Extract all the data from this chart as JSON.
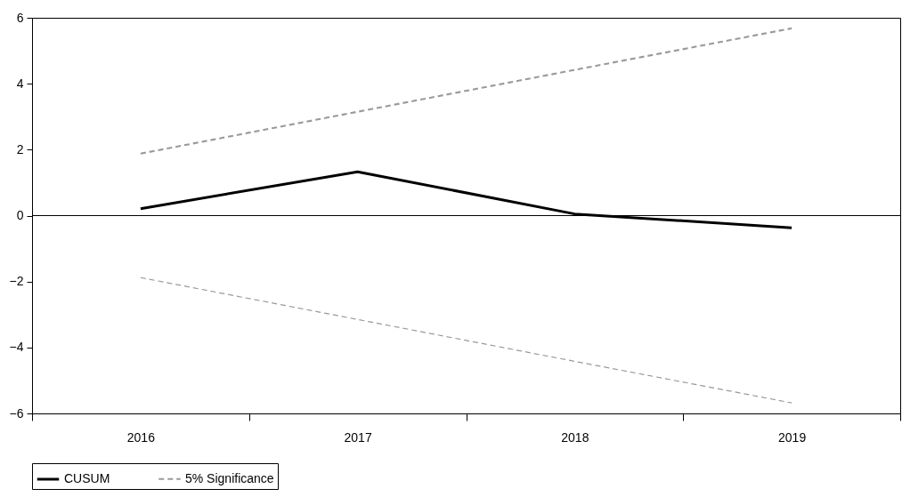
{
  "chart_data": {
    "type": "line",
    "categories": [
      "2016",
      "2017",
      "2018",
      "2019"
    ],
    "series": [
      {
        "name": "CUSUM",
        "color": "#000000",
        "line_style": "solid",
        "values": [
          0.21,
          1.33,
          0.05,
          -0.37
        ]
      },
      {
        "name": "5% Significance",
        "color": "#999999",
        "line_style": "dashed",
        "values": [
          1.88,
          3.15,
          4.42,
          5.68
        ]
      },
      {
        "color": "#999999",
        "line_style": "dashed",
        "values": [
          -1.88,
          -3.15,
          -4.42,
          -5.68
        ]
      }
    ],
    "ylim": [
      -6,
      6
    ],
    "yticks": [
      -6,
      -4,
      -2,
      0,
      2,
      4,
      6
    ],
    "grid": false,
    "legend": "bottom",
    "ref_lines": [
      {
        "axis": "y",
        "value": 0,
        "color": "#000000"
      }
    ]
  }
}
